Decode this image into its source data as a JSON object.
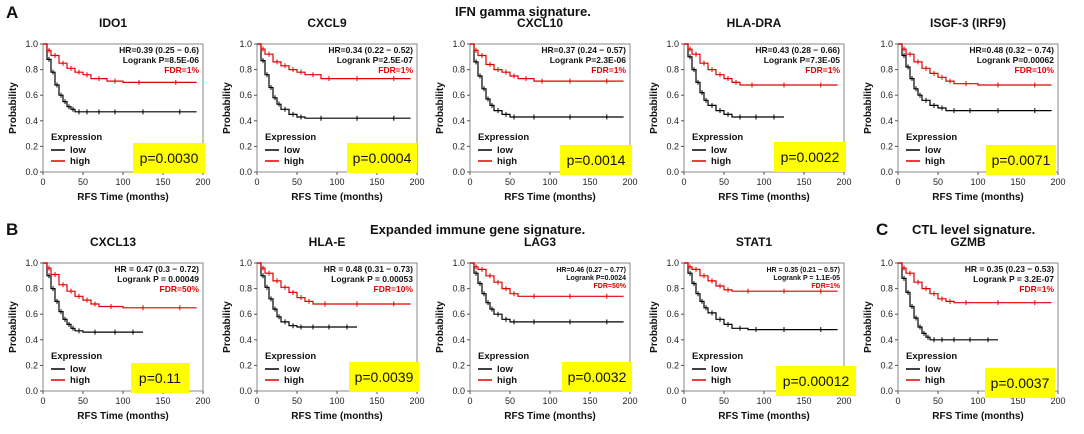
{
  "figure": {
    "panel_labels": {
      "a": "A",
      "b": "B",
      "c": "C"
    },
    "section_titles": {
      "a": "IFN gamma signature.",
      "b": "Expanded immune gene signature.",
      "c": "CTL level signature."
    },
    "colors": {
      "low": "#000000",
      "high": "#e00000",
      "pbox": "#ffff00",
      "fdr": "#e00000"
    },
    "common": {
      "xlabel": "RFS Time (months)",
      "ylabel": "Probability",
      "xlim": [
        0,
        200
      ],
      "ylim": [
        0,
        1
      ],
      "xticks": [
        "0",
        "50",
        "100",
        "150",
        "200"
      ],
      "yticks": [
        "0.0",
        "0.2",
        "0.4",
        "0.6",
        "0.8",
        "1.0"
      ],
      "legend_title": "Expression",
      "legend_low": "low",
      "legend_high": "high"
    }
  },
  "chart_data": [
    {
      "type": "line",
      "title": "IDO1",
      "hr": "HR=0.39 (0.25 − 0.6)",
      "logrank": "Logrank P=8.5E-06",
      "fdr": "FDR=1%",
      "pval": "p=0.0030",
      "series": [
        {
          "name": "low",
          "x": [
            0,
            5,
            10,
            15,
            20,
            25,
            30,
            35,
            40,
            50,
            60,
            80,
            100,
            150,
            192
          ],
          "y": [
            1.0,
            0.88,
            0.78,
            0.68,
            0.6,
            0.55,
            0.51,
            0.49,
            0.47,
            0.47,
            0.47,
            0.47,
            0.47,
            0.47,
            0.47
          ]
        },
        {
          "name": "high",
          "x": [
            0,
            5,
            10,
            20,
            30,
            40,
            50,
            60,
            80,
            100,
            140,
            192
          ],
          "y": [
            1.0,
            0.95,
            0.91,
            0.85,
            0.81,
            0.78,
            0.76,
            0.73,
            0.71,
            0.7,
            0.7,
            0.7
          ]
        }
      ]
    },
    {
      "type": "line",
      "title": "CXCL9",
      "hr": "HR=0.34 (0.22 − 0.52)",
      "logrank": "Logrank P=2.5E-07",
      "fdr": "FDR=1%",
      "pval": "p=0.0004",
      "series": [
        {
          "name": "low",
          "x": [
            0,
            5,
            10,
            15,
            20,
            25,
            30,
            40,
            50,
            60,
            100,
            150,
            192
          ],
          "y": [
            1.0,
            0.87,
            0.76,
            0.66,
            0.58,
            0.53,
            0.49,
            0.45,
            0.43,
            0.42,
            0.42,
            0.42,
            0.42
          ]
        },
        {
          "name": "high",
          "x": [
            0,
            5,
            10,
            20,
            30,
            40,
            50,
            60,
            80,
            100,
            150,
            192
          ],
          "y": [
            1.0,
            0.96,
            0.92,
            0.86,
            0.83,
            0.8,
            0.78,
            0.76,
            0.73,
            0.73,
            0.73,
            0.73
          ]
        }
      ]
    },
    {
      "type": "line",
      "title": "CXCL10",
      "hr": "HR=0.37 (0.24 − 0.57)",
      "logrank": "Logrank P=2.3E-06",
      "fdr": "FDR=1%",
      "pval": "p=0.0014",
      "series": [
        {
          "name": "low",
          "x": [
            0,
            5,
            10,
            15,
            20,
            25,
            30,
            40,
            50,
            60,
            100,
            150,
            192
          ],
          "y": [
            1.0,
            0.86,
            0.75,
            0.65,
            0.57,
            0.52,
            0.48,
            0.45,
            0.43,
            0.43,
            0.43,
            0.43,
            0.43
          ]
        },
        {
          "name": "high",
          "x": [
            0,
            5,
            10,
            20,
            30,
            40,
            50,
            60,
            80,
            100,
            150,
            192
          ],
          "y": [
            1.0,
            0.95,
            0.91,
            0.84,
            0.8,
            0.78,
            0.75,
            0.73,
            0.71,
            0.71,
            0.71,
            0.71
          ]
        }
      ]
    },
    {
      "type": "line",
      "title": "HLA-DRA",
      "hr": "HR=0.43 (0.28 − 0.66)",
      "logrank": "Logrank P=7.3E-05",
      "fdr": "FDR=1%",
      "pval": "p=0.0022",
      "series": [
        {
          "name": "low",
          "x": [
            0,
            5,
            10,
            15,
            20,
            25,
            30,
            40,
            50,
            60,
            80,
            100,
            125
          ],
          "y": [
            1.0,
            0.9,
            0.8,
            0.7,
            0.62,
            0.56,
            0.52,
            0.48,
            0.45,
            0.43,
            0.43,
            0.43,
            0.43
          ]
        },
        {
          "name": "high",
          "x": [
            0,
            5,
            10,
            20,
            30,
            40,
            50,
            60,
            70,
            100,
            150,
            192
          ],
          "y": [
            1.0,
            0.96,
            0.92,
            0.85,
            0.8,
            0.76,
            0.73,
            0.7,
            0.68,
            0.68,
            0.68,
            0.68
          ]
        }
      ]
    },
    {
      "type": "line",
      "title": "ISGF-3 (IRF9)",
      "hr": "HR=0.48 (0.32 − 0.74)",
      "logrank": "Logrank P=0.00062",
      "fdr": "FDR=10%",
      "pval": "p=0.0071",
      "series": [
        {
          "name": "low",
          "x": [
            0,
            5,
            10,
            15,
            20,
            25,
            30,
            40,
            50,
            60,
            80,
            100,
            150,
            192
          ],
          "y": [
            1.0,
            0.91,
            0.82,
            0.73,
            0.65,
            0.6,
            0.56,
            0.52,
            0.5,
            0.48,
            0.48,
            0.48,
            0.48,
            0.48
          ]
        },
        {
          "name": "high",
          "x": [
            0,
            5,
            10,
            20,
            30,
            40,
            50,
            60,
            70,
            100,
            150,
            192
          ],
          "y": [
            1.0,
            0.96,
            0.92,
            0.86,
            0.81,
            0.77,
            0.74,
            0.71,
            0.69,
            0.68,
            0.68,
            0.68
          ]
        }
      ]
    },
    {
      "type": "line",
      "title": "CXCL13",
      "hr": "HR = 0.47 (0.3 − 0.72)",
      "logrank": "Logrank P = 0.00049",
      "fdr": "FDR=50%",
      "pval": "p=0.11",
      "series": [
        {
          "name": "low",
          "x": [
            0,
            5,
            10,
            15,
            20,
            25,
            30,
            35,
            40,
            50,
            80,
            100,
            125
          ],
          "y": [
            1.0,
            0.9,
            0.8,
            0.7,
            0.62,
            0.56,
            0.52,
            0.49,
            0.47,
            0.46,
            0.46,
            0.46,
            0.46
          ]
        },
        {
          "name": "high",
          "x": [
            0,
            5,
            10,
            20,
            30,
            40,
            50,
            60,
            70,
            100,
            150,
            192
          ],
          "y": [
            1.0,
            0.96,
            0.91,
            0.83,
            0.78,
            0.74,
            0.71,
            0.68,
            0.66,
            0.65,
            0.65,
            0.65
          ]
        }
      ]
    },
    {
      "type": "line",
      "title": "HLA-E",
      "hr": "HR = 0.48 (0.31 − 0.73)",
      "logrank": "Logrank P = 0.00053",
      "fdr": "FDR=10%",
      "pval": "p=0.0039",
      "series": [
        {
          "name": "low",
          "x": [
            0,
            5,
            10,
            15,
            20,
            25,
            30,
            40,
            50,
            60,
            80,
            100,
            125
          ],
          "y": [
            1.0,
            0.9,
            0.81,
            0.72,
            0.64,
            0.58,
            0.54,
            0.51,
            0.5,
            0.5,
            0.5,
            0.5,
            0.5
          ]
        },
        {
          "name": "high",
          "x": [
            0,
            5,
            10,
            20,
            30,
            40,
            50,
            60,
            70,
            100,
            150,
            192
          ],
          "y": [
            1.0,
            0.96,
            0.92,
            0.86,
            0.81,
            0.77,
            0.73,
            0.7,
            0.68,
            0.68,
            0.68,
            0.68
          ]
        }
      ]
    },
    {
      "type": "line",
      "title": "LAG3",
      "hr": "HR=0.46 (0.27 − 0.77)",
      "logrank": "Logrank P=0.0024",
      "fdr": "FDR=50%",
      "pval": "p=0.0032",
      "series": [
        {
          "name": "low",
          "x": [
            0,
            5,
            10,
            15,
            20,
            25,
            30,
            40,
            50,
            60,
            100,
            150,
            192
          ],
          "y": [
            1.0,
            0.92,
            0.84,
            0.76,
            0.69,
            0.64,
            0.6,
            0.56,
            0.54,
            0.54,
            0.54,
            0.54,
            0.54
          ]
        },
        {
          "name": "high",
          "x": [
            0,
            5,
            10,
            20,
            30,
            40,
            50,
            60,
            100,
            150,
            192
          ],
          "y": [
            1.0,
            0.97,
            0.95,
            0.9,
            0.85,
            0.8,
            0.76,
            0.74,
            0.74,
            0.74,
            0.74
          ]
        }
      ]
    },
    {
      "type": "line",
      "title": "STAT1",
      "hr": "HR = 0.35 (0.21 − 0.57)",
      "logrank": "Logrank P = 1.1E-05",
      "fdr": "FDR=1%",
      "pval": "p=0.00012",
      "series": [
        {
          "name": "low",
          "x": [
            0,
            5,
            10,
            15,
            20,
            25,
            30,
            40,
            50,
            60,
            80,
            100,
            150,
            192
          ],
          "y": [
            1.0,
            0.92,
            0.84,
            0.76,
            0.7,
            0.65,
            0.61,
            0.56,
            0.52,
            0.49,
            0.48,
            0.48,
            0.48,
            0.48
          ]
        },
        {
          "name": "high",
          "x": [
            0,
            5,
            10,
            20,
            30,
            40,
            50,
            60,
            100,
            150,
            192
          ],
          "y": [
            1.0,
            0.97,
            0.95,
            0.9,
            0.86,
            0.82,
            0.79,
            0.78,
            0.78,
            0.78,
            0.78
          ]
        }
      ]
    },
    {
      "type": "line",
      "title": "GZMB",
      "hr": "HR = 0.35 (0.23 − 0.53)",
      "logrank": "Logrank P = 3.2E-07",
      "fdr": "FDR=1%",
      "pval": "p=0.0037",
      "series": [
        {
          "name": "low",
          "x": [
            0,
            5,
            10,
            15,
            20,
            25,
            30,
            35,
            40,
            50,
            60,
            80,
            100,
            125
          ],
          "y": [
            1.0,
            0.88,
            0.77,
            0.66,
            0.57,
            0.5,
            0.45,
            0.42,
            0.4,
            0.4,
            0.4,
            0.4,
            0.4,
            0.4
          ]
        },
        {
          "name": "high",
          "x": [
            0,
            5,
            10,
            20,
            30,
            40,
            50,
            60,
            70,
            100,
            150,
            192
          ],
          "y": [
            1.0,
            0.96,
            0.92,
            0.85,
            0.8,
            0.76,
            0.72,
            0.7,
            0.69,
            0.69,
            0.69,
            0.69
          ]
        }
      ]
    }
  ]
}
